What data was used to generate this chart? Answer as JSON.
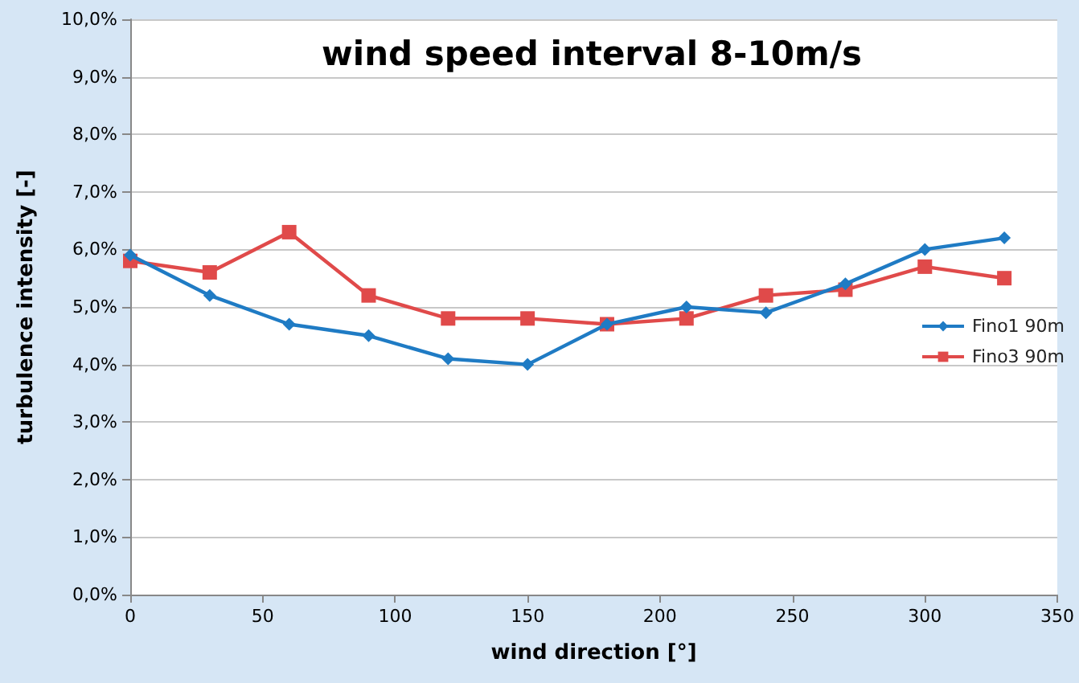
{
  "chart_data": {
    "type": "line",
    "title": "wind speed interval 8-10m/s",
    "xlabel": "wind direction [°]",
    "ylabel": "turbulence intensity [-]",
    "x": [
      0,
      30,
      60,
      90,
      120,
      150,
      180,
      210,
      240,
      270,
      300,
      330
    ],
    "series": [
      {
        "name": "Fino1 90m",
        "color": "#1f7bc4",
        "marker": "diamond",
        "values": [
          5.9,
          5.2,
          4.7,
          4.5,
          4.1,
          4.0,
          4.7,
          5.0,
          4.9,
          5.4,
          6.0,
          6.2
        ]
      },
      {
        "name": "Fino3 90m",
        "color": "#e04a4a",
        "marker": "square",
        "values": [
          5.8,
          5.6,
          6.3,
          5.2,
          4.8,
          4.8,
          4.7,
          4.8,
          5.2,
          5.3,
          5.7,
          5.5
        ]
      }
    ],
    "xlim": [
      0,
      350
    ],
    "xticks": [
      0,
      50,
      100,
      150,
      200,
      250,
      300,
      350
    ],
    "ylim": [
      0,
      10
    ],
    "yticks": [
      {
        "value": 0,
        "label": "0,0%"
      },
      {
        "value": 1,
        "label": "1,0%"
      },
      {
        "value": 2,
        "label": "2,0%"
      },
      {
        "value": 3,
        "label": "3,0%"
      },
      {
        "value": 4,
        "label": "4,0%"
      },
      {
        "value": 5,
        "label": "5,0%"
      },
      {
        "value": 6,
        "label": "6,0%"
      },
      {
        "value": 7,
        "label": "7,0%"
      },
      {
        "value": 8,
        "label": "8,0%"
      },
      {
        "value": 9,
        "label": "9,0%"
      },
      {
        "value": 10,
        "label": "10,0%"
      }
    ],
    "grid": "y",
    "legend": "right",
    "line_style": "solid"
  }
}
